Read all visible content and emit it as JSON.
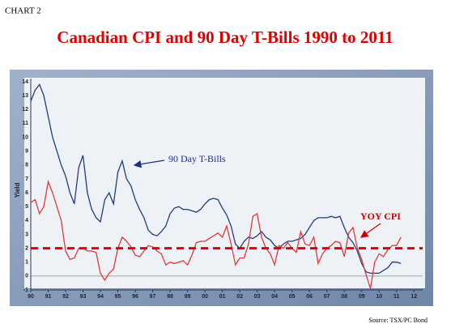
{
  "chart_data": {
    "type": "line",
    "label": "CHART 2",
    "title": "Canadian CPI and 90 Day T-Bills 1990 to 2011",
    "y_label": "Yield",
    "source": "Source: TSX/PC Bond",
    "x": [
      1990,
      1990.25,
      1990.5,
      1990.75,
      1991,
      1991.25,
      1991.5,
      1991.75,
      1992,
      1992.25,
      1992.5,
      1992.75,
      1993,
      1993.25,
      1993.5,
      1993.75,
      1994,
      1994.25,
      1994.5,
      1994.75,
      1995,
      1995.25,
      1995.5,
      1995.75,
      1996,
      1996.25,
      1996.5,
      1996.75,
      1997,
      1997.25,
      1997.5,
      1997.75,
      1998,
      1998.25,
      1998.5,
      1998.75,
      1999,
      1999.25,
      1999.5,
      1999.75,
      2000,
      2000.25,
      2000.5,
      2000.75,
      2001,
      2001.25,
      2001.5,
      2001.75,
      2002,
      2002.25,
      2002.5,
      2002.75,
      2003,
      2003.25,
      2003.5,
      2003.75,
      2004,
      2004.25,
      2004.5,
      2004.75,
      2005,
      2005.25,
      2005.5,
      2005.75,
      2006,
      2006.25,
      2006.5,
      2006.75,
      2007,
      2007.25,
      2007.5,
      2007.75,
      2008,
      2008.25,
      2008.5,
      2008.75,
      2009,
      2009.25,
      2009.5,
      2009.75,
      2010,
      2010.25,
      2010.5,
      2010.75,
      2011,
      2011.25
    ],
    "series": [
      {
        "name": "90 Day T-Bills",
        "color": "#1f3f7a",
        "values": [
          12.6,
          13.4,
          13.8,
          13.0,
          11.5,
          10.0,
          9.0,
          8.0,
          7.2,
          6.0,
          5.2,
          7.8,
          8.7,
          6.0,
          4.8,
          4.2,
          3.9,
          5.5,
          6.0,
          5.2,
          7.5,
          8.3,
          7.0,
          6.5,
          5.5,
          4.8,
          4.2,
          3.3,
          3.0,
          2.9,
          3.2,
          3.6,
          4.5,
          4.9,
          5.0,
          4.8,
          4.8,
          4.7,
          4.6,
          4.8,
          5.2,
          5.5,
          5.6,
          5.5,
          4.9,
          4.4,
          3.6,
          2.3,
          2.0,
          2.5,
          2.8,
          2.7,
          2.9,
          3.2,
          2.8,
          2.6,
          2.2,
          2.0,
          2.3,
          2.5,
          2.5,
          2.6,
          2.7,
          3.0,
          3.5,
          4.0,
          4.2,
          4.2,
          4.2,
          4.3,
          4.2,
          4.3,
          3.5,
          2.8,
          2.4,
          1.8,
          0.9,
          0.3,
          0.2,
          0.2,
          0.2,
          0.4,
          0.6,
          1.0,
          1.0,
          0.9
        ]
      },
      {
        "name": "YOY CPI",
        "color": "#e03a3a",
        "values": [
          5.3,
          5.5,
          4.5,
          5.0,
          6.8,
          6.0,
          5.0,
          4.0,
          1.8,
          1.2,
          1.3,
          2.0,
          2.0,
          1.8,
          1.8,
          1.7,
          0.2,
          -0.3,
          0.2,
          0.5,
          2.0,
          2.8,
          2.5,
          2.1,
          1.5,
          1.4,
          1.8,
          2.2,
          2.1,
          1.8,
          1.6,
          0.8,
          1.0,
          0.9,
          1.0,
          1.1,
          0.8,
          1.5,
          2.4,
          2.5,
          2.5,
          2.7,
          2.9,
          3.1,
          2.8,
          3.6,
          2.3,
          0.8,
          1.3,
          1.3,
          2.3,
          4.3,
          4.5,
          2.8,
          2.0,
          1.6,
          0.8,
          2.2,
          2.0,
          2.4,
          2.0,
          1.7,
          3.2,
          2.3,
          2.2,
          2.8,
          0.9,
          1.6,
          2.0,
          2.2,
          2.5,
          2.4,
          1.4,
          3.1,
          3.5,
          2.0,
          1.2,
          0.1,
          -0.9,
          1.0,
          1.6,
          1.4,
          1.9,
          2.2,
          2.2,
          2.8
        ]
      }
    ],
    "reference_line": {
      "value": 2,
      "color": "#dd0000"
    },
    "xlim": [
      1990,
      2012.5
    ],
    "xticks": [
      {
        "value": 1990,
        "label": "90"
      },
      {
        "value": 1991,
        "label": "91"
      },
      {
        "value": 1992,
        "label": "92"
      },
      {
        "value": 1993,
        "label": "93"
      },
      {
        "value": 1994,
        "label": "94"
      },
      {
        "value": 1995,
        "label": "95"
      },
      {
        "value": 1996,
        "label": "96"
      },
      {
        "value": 1997,
        "label": "97"
      },
      {
        "value": 1998,
        "label": "98"
      },
      {
        "value": 1999,
        "label": "99"
      },
      {
        "value": 2000,
        "label": "00"
      },
      {
        "value": 2001,
        "label": "01"
      },
      {
        "value": 2002,
        "label": "02"
      },
      {
        "value": 2003,
        "label": "03"
      },
      {
        "value": 2004,
        "label": "04"
      },
      {
        "value": 2005,
        "label": "05"
      },
      {
        "value": 2006,
        "label": "06"
      },
      {
        "value": 2007,
        "label": "07"
      },
      {
        "value": 2008,
        "label": "08"
      },
      {
        "value": 2009,
        "label": "09"
      },
      {
        "value": 2010,
        "label": "10"
      },
      {
        "value": 2011,
        "label": "11"
      },
      {
        "value": 2012,
        "label": "12"
      }
    ],
    "ylim": [
      -1,
      14
    ],
    "yticks": [
      -1,
      0,
      1,
      2,
      3,
      4,
      5,
      6,
      7,
      8,
      9,
      10,
      11,
      12,
      13,
      14
    ]
  }
}
